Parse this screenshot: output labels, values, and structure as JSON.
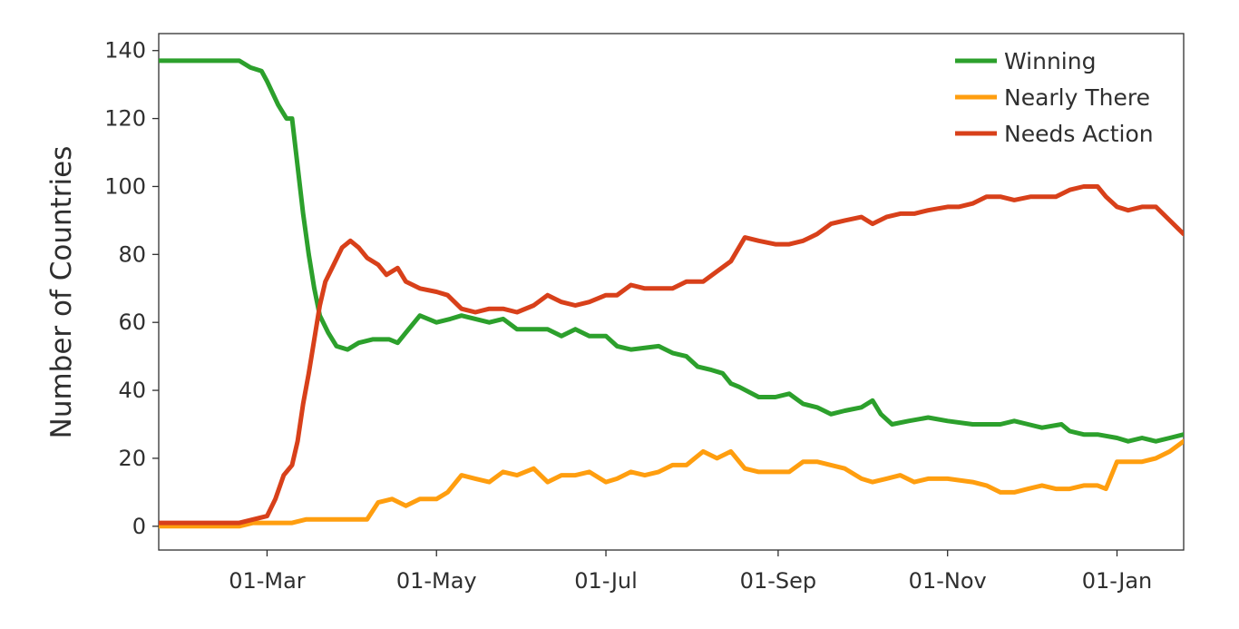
{
  "chart_data": {
    "type": "line",
    "title": "",
    "xlabel": "",
    "ylabel": "Number of Countries",
    "x_range": [
      "2020-01-22",
      "2021-01-25"
    ],
    "ylim": [
      -7,
      145
    ],
    "y_ticks": [
      0,
      20,
      40,
      60,
      80,
      100,
      120,
      140
    ],
    "x_ticks": [
      {
        "date": "2020-03-01",
        "label": "01-Mar"
      },
      {
        "date": "2020-05-01",
        "label": "01-May"
      },
      {
        "date": "2020-07-01",
        "label": "01-Jul"
      },
      {
        "date": "2020-09-01",
        "label": "01-Sep"
      },
      {
        "date": "2020-11-01",
        "label": "01-Nov"
      },
      {
        "date": "2021-01-01",
        "label": "01-Jan"
      }
    ],
    "grid": false,
    "legend_position": "top-right",
    "series": [
      {
        "name": "Winning",
        "color": "#2ca02c",
        "points": [
          [
            "2020-01-22",
            137
          ],
          [
            "2020-02-15",
            137
          ],
          [
            "2020-02-20",
            137
          ],
          [
            "2020-02-24",
            135
          ],
          [
            "2020-02-28",
            134
          ],
          [
            "2020-03-01",
            131
          ],
          [
            "2020-03-05",
            124
          ],
          [
            "2020-03-08",
            120
          ],
          [
            "2020-03-10",
            120
          ],
          [
            "2020-03-12",
            106
          ],
          [
            "2020-03-14",
            92
          ],
          [
            "2020-03-16",
            80
          ],
          [
            "2020-03-18",
            70
          ],
          [
            "2020-03-20",
            62
          ],
          [
            "2020-03-23",
            57
          ],
          [
            "2020-03-26",
            53
          ],
          [
            "2020-03-30",
            52
          ],
          [
            "2020-04-03",
            54
          ],
          [
            "2020-04-08",
            55
          ],
          [
            "2020-04-14",
            55
          ],
          [
            "2020-04-17",
            54
          ],
          [
            "2020-04-20",
            57
          ],
          [
            "2020-04-25",
            62
          ],
          [
            "2020-05-01",
            60
          ],
          [
            "2020-05-06",
            61
          ],
          [
            "2020-05-10",
            62
          ],
          [
            "2020-05-15",
            61
          ],
          [
            "2020-05-20",
            60
          ],
          [
            "2020-05-25",
            61
          ],
          [
            "2020-05-30",
            58
          ],
          [
            "2020-06-05",
            58
          ],
          [
            "2020-06-10",
            58
          ],
          [
            "2020-06-15",
            56
          ],
          [
            "2020-06-20",
            58
          ],
          [
            "2020-06-25",
            56
          ],
          [
            "2020-07-01",
            56
          ],
          [
            "2020-07-05",
            53
          ],
          [
            "2020-07-10",
            52
          ],
          [
            "2020-07-20",
            53
          ],
          [
            "2020-07-25",
            51
          ],
          [
            "2020-07-30",
            50
          ],
          [
            "2020-08-03",
            47
          ],
          [
            "2020-08-08",
            46
          ],
          [
            "2020-08-12",
            45
          ],
          [
            "2020-08-15",
            42
          ],
          [
            "2020-08-18",
            41
          ],
          [
            "2020-08-25",
            38
          ],
          [
            "2020-08-31",
            38
          ],
          [
            "2020-09-05",
            39
          ],
          [
            "2020-09-10",
            36
          ],
          [
            "2020-09-15",
            35
          ],
          [
            "2020-09-20",
            33
          ],
          [
            "2020-09-25",
            34
          ],
          [
            "2020-10-01",
            35
          ],
          [
            "2020-10-05",
            37
          ],
          [
            "2020-10-08",
            33
          ],
          [
            "2020-10-12",
            30
          ],
          [
            "2020-10-18",
            31
          ],
          [
            "2020-10-25",
            32
          ],
          [
            "2020-11-01",
            31
          ],
          [
            "2020-11-10",
            30
          ],
          [
            "2020-11-20",
            30
          ],
          [
            "2020-11-25",
            31
          ],
          [
            "2020-11-30",
            30
          ],
          [
            "2020-12-05",
            29
          ],
          [
            "2020-12-12",
            30
          ],
          [
            "2020-12-15",
            28
          ],
          [
            "2020-12-20",
            27
          ],
          [
            "2020-12-25",
            27
          ],
          [
            "2021-01-01",
            26
          ],
          [
            "2021-01-05",
            25
          ],
          [
            "2021-01-10",
            26
          ],
          [
            "2021-01-15",
            25
          ],
          [
            "2021-01-20",
            26
          ],
          [
            "2021-01-25",
            27
          ]
        ]
      },
      {
        "name": "Nearly There",
        "color": "#ff9e0f",
        "points": [
          [
            "2020-01-22",
            0
          ],
          [
            "2020-02-20",
            0
          ],
          [
            "2020-02-25",
            1
          ],
          [
            "2020-03-10",
            1
          ],
          [
            "2020-03-15",
            2
          ],
          [
            "2020-03-25",
            2
          ],
          [
            "2020-04-01",
            2
          ],
          [
            "2020-04-06",
            2
          ],
          [
            "2020-04-10",
            7
          ],
          [
            "2020-04-15",
            8
          ],
          [
            "2020-04-20",
            6
          ],
          [
            "2020-04-25",
            8
          ],
          [
            "2020-05-01",
            8
          ],
          [
            "2020-05-05",
            10
          ],
          [
            "2020-05-10",
            15
          ],
          [
            "2020-05-15",
            14
          ],
          [
            "2020-05-20",
            13
          ],
          [
            "2020-05-25",
            16
          ],
          [
            "2020-05-30",
            15
          ],
          [
            "2020-06-05",
            17
          ],
          [
            "2020-06-10",
            13
          ],
          [
            "2020-06-15",
            15
          ],
          [
            "2020-06-20",
            15
          ],
          [
            "2020-06-25",
            16
          ],
          [
            "2020-07-01",
            13
          ],
          [
            "2020-07-05",
            14
          ],
          [
            "2020-07-10",
            16
          ],
          [
            "2020-07-15",
            15
          ],
          [
            "2020-07-20",
            16
          ],
          [
            "2020-07-25",
            18
          ],
          [
            "2020-07-30",
            18
          ],
          [
            "2020-08-05",
            22
          ],
          [
            "2020-08-10",
            20
          ],
          [
            "2020-08-15",
            22
          ],
          [
            "2020-08-20",
            17
          ],
          [
            "2020-08-25",
            16
          ],
          [
            "2020-08-31",
            16
          ],
          [
            "2020-09-05",
            16
          ],
          [
            "2020-09-10",
            19
          ],
          [
            "2020-09-15",
            19
          ],
          [
            "2020-09-20",
            18
          ],
          [
            "2020-09-25",
            17
          ],
          [
            "2020-10-01",
            14
          ],
          [
            "2020-10-05",
            13
          ],
          [
            "2020-10-10",
            14
          ],
          [
            "2020-10-15",
            15
          ],
          [
            "2020-10-20",
            13
          ],
          [
            "2020-10-25",
            14
          ],
          [
            "2020-11-01",
            14
          ],
          [
            "2020-11-10",
            13
          ],
          [
            "2020-11-15",
            12
          ],
          [
            "2020-11-20",
            10
          ],
          [
            "2020-11-25",
            10
          ],
          [
            "2020-11-30",
            11
          ],
          [
            "2020-12-05",
            12
          ],
          [
            "2020-12-10",
            11
          ],
          [
            "2020-12-15",
            11
          ],
          [
            "2020-12-20",
            12
          ],
          [
            "2020-12-25",
            12
          ],
          [
            "2020-12-28",
            11
          ],
          [
            "2021-01-01",
            19
          ],
          [
            "2021-01-05",
            19
          ],
          [
            "2021-01-10",
            19
          ],
          [
            "2021-01-15",
            20
          ],
          [
            "2021-01-20",
            22
          ],
          [
            "2021-01-25",
            25
          ]
        ]
      },
      {
        "name": "Needs Action",
        "color": "#d8401a",
        "points": [
          [
            "2020-01-22",
            1
          ],
          [
            "2020-02-20",
            1
          ],
          [
            "2020-02-25",
            2
          ],
          [
            "2020-03-01",
            3
          ],
          [
            "2020-03-04",
            8
          ],
          [
            "2020-03-07",
            15
          ],
          [
            "2020-03-10",
            18
          ],
          [
            "2020-03-12",
            25
          ],
          [
            "2020-03-14",
            36
          ],
          [
            "2020-03-16",
            45
          ],
          [
            "2020-03-18",
            55
          ],
          [
            "2020-03-20",
            65
          ],
          [
            "2020-03-22",
            72
          ],
          [
            "2020-03-25",
            77
          ],
          [
            "2020-03-28",
            82
          ],
          [
            "2020-03-31",
            84
          ],
          [
            "2020-04-03",
            82
          ],
          [
            "2020-04-06",
            79
          ],
          [
            "2020-04-10",
            77
          ],
          [
            "2020-04-13",
            74
          ],
          [
            "2020-04-17",
            76
          ],
          [
            "2020-04-20",
            72
          ],
          [
            "2020-04-25",
            70
          ],
          [
            "2020-05-01",
            69
          ],
          [
            "2020-05-05",
            68
          ],
          [
            "2020-05-10",
            64
          ],
          [
            "2020-05-15",
            63
          ],
          [
            "2020-05-20",
            64
          ],
          [
            "2020-05-25",
            64
          ],
          [
            "2020-05-30",
            63
          ],
          [
            "2020-06-05",
            65
          ],
          [
            "2020-06-10",
            68
          ],
          [
            "2020-06-15",
            66
          ],
          [
            "2020-06-20",
            65
          ],
          [
            "2020-06-25",
            66
          ],
          [
            "2020-07-01",
            68
          ],
          [
            "2020-07-05",
            68
          ],
          [
            "2020-07-10",
            71
          ],
          [
            "2020-07-15",
            70
          ],
          [
            "2020-07-20",
            70
          ],
          [
            "2020-07-25",
            70
          ],
          [
            "2020-07-30",
            72
          ],
          [
            "2020-08-05",
            72
          ],
          [
            "2020-08-10",
            75
          ],
          [
            "2020-08-15",
            78
          ],
          [
            "2020-08-20",
            85
          ],
          [
            "2020-08-25",
            84
          ],
          [
            "2020-08-31",
            83
          ],
          [
            "2020-09-05",
            83
          ],
          [
            "2020-09-10",
            84
          ],
          [
            "2020-09-15",
            86
          ],
          [
            "2020-09-20",
            89
          ],
          [
            "2020-09-25",
            90
          ],
          [
            "2020-10-01",
            91
          ],
          [
            "2020-10-05",
            89
          ],
          [
            "2020-10-10",
            91
          ],
          [
            "2020-10-15",
            92
          ],
          [
            "2020-10-20",
            92
          ],
          [
            "2020-10-25",
            93
          ],
          [
            "2020-11-01",
            94
          ],
          [
            "2020-11-05",
            94
          ],
          [
            "2020-11-10",
            95
          ],
          [
            "2020-11-15",
            97
          ],
          [
            "2020-11-20",
            97
          ],
          [
            "2020-11-25",
            96
          ],
          [
            "2020-12-01",
            97
          ],
          [
            "2020-12-05",
            97
          ],
          [
            "2020-12-10",
            97
          ],
          [
            "2020-12-15",
            99
          ],
          [
            "2020-12-20",
            100
          ],
          [
            "2020-12-25",
            100
          ],
          [
            "2020-12-28",
            97
          ],
          [
            "2021-01-01",
            94
          ],
          [
            "2021-01-05",
            93
          ],
          [
            "2021-01-10",
            94
          ],
          [
            "2021-01-15",
            94
          ],
          [
            "2021-01-20",
            90
          ],
          [
            "2021-01-25",
            86
          ]
        ]
      }
    ]
  }
}
